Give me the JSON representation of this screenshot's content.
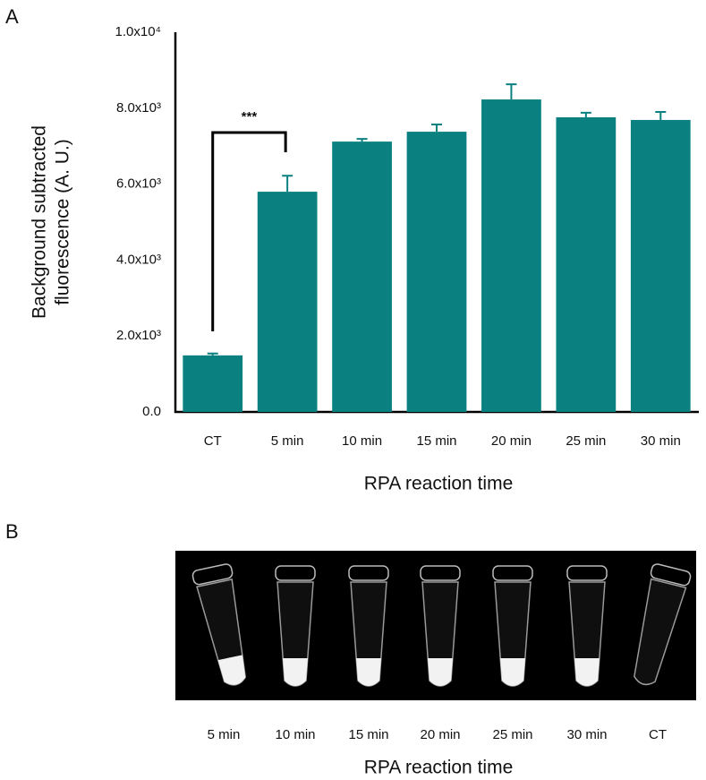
{
  "panel_a_label": "A",
  "chart_data": {
    "type": "bar",
    "categories": [
      "CT",
      "5 min",
      "10 min",
      "15 min",
      "20 min",
      "25 min",
      "30 min"
    ],
    "values": [
      1490,
      5800,
      7120,
      7380,
      8230,
      7760,
      7690
    ],
    "errors": [
      50,
      420,
      70,
      190,
      400,
      120,
      210
    ],
    "color": "#0a8080",
    "ylim": [
      0,
      10000
    ],
    "yticks": [
      {
        "value": 0,
        "label": "0.0"
      },
      {
        "value": 2000,
        "label": "2.0x10³"
      },
      {
        "value": 4000,
        "label": "4.0x10³"
      },
      {
        "value": 6000,
        "label": "6.0x10³"
      },
      {
        "value": 8000,
        "label": "8.0x10³"
      },
      {
        "value": 10000,
        "label": "1.0x10⁴"
      }
    ],
    "ylabel": [
      "Background subtracted",
      "fluorescence (A. U.)"
    ],
    "xlabel": "RPA reaction time",
    "significance": "***"
  },
  "panel_b": {
    "label": "B",
    "lanes": [
      "5 min",
      "10 min",
      "15 min",
      "20 min",
      "25 min",
      "30 min",
      "CT"
    ],
    "xlabel": "RPA reaction time"
  }
}
